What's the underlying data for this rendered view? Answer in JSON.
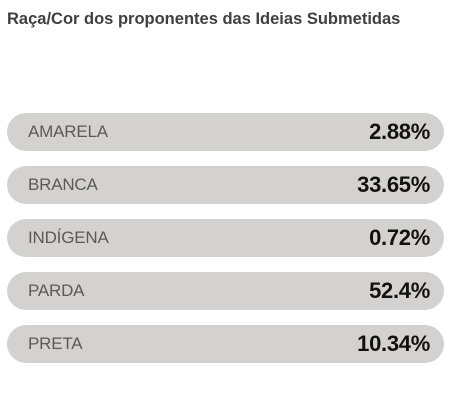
{
  "title": "Raça/Cor dos proponentes das Ideias Submetidas",
  "chart_data": {
    "type": "table",
    "title": "Raça/Cor dos proponentes das Ideias Submetidas",
    "categories": [
      "AMARELA",
      "BRANCA",
      "INDÍGENA",
      "PARDA",
      "PRETA"
    ],
    "values": [
      2.88,
      33.65,
      0.72,
      52.4,
      10.34
    ],
    "value_labels": [
      "2.88%",
      "33.65%",
      "0.72%",
      "52.4%",
      "10.34%"
    ],
    "unit": "%"
  },
  "colors": {
    "row_background": "#d3d2d0",
    "label_text": "#5a5a5a",
    "value_text": "#111111",
    "title_text": "#404040"
  }
}
